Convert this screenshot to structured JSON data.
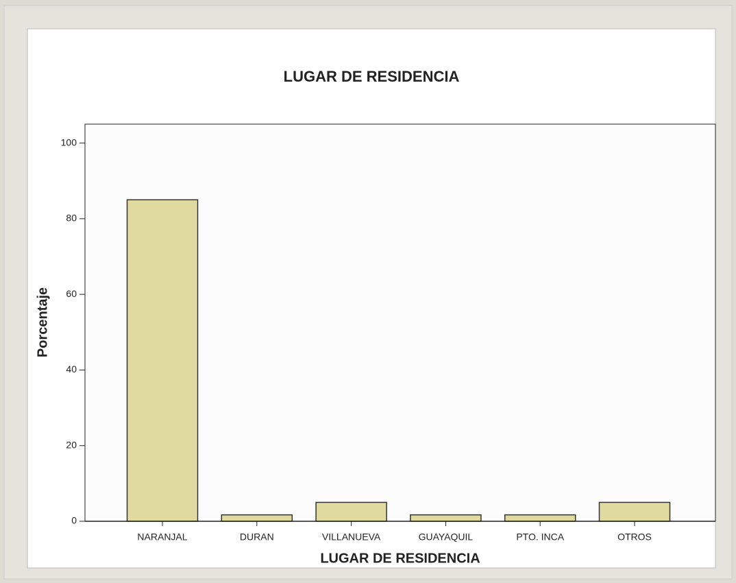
{
  "chart_data": {
    "type": "bar",
    "title": "LUGAR DE RESIDENCIA",
    "x_label": "LUGAR DE RESIDENCIA",
    "y_label": "Porcentaje",
    "categories": [
      "NARANJAL",
      "DURAN",
      "VILLANUEVA",
      "GUAYAQUIL",
      "PTO. INCA",
      "OTROS"
    ],
    "values": [
      85,
      1.7,
      5,
      1.7,
      1.7,
      5
    ],
    "color": "#e0d9a0",
    "ylim": [
      0,
      105
    ],
    "yticks": [
      0,
      20,
      40,
      60,
      80,
      100
    ]
  }
}
